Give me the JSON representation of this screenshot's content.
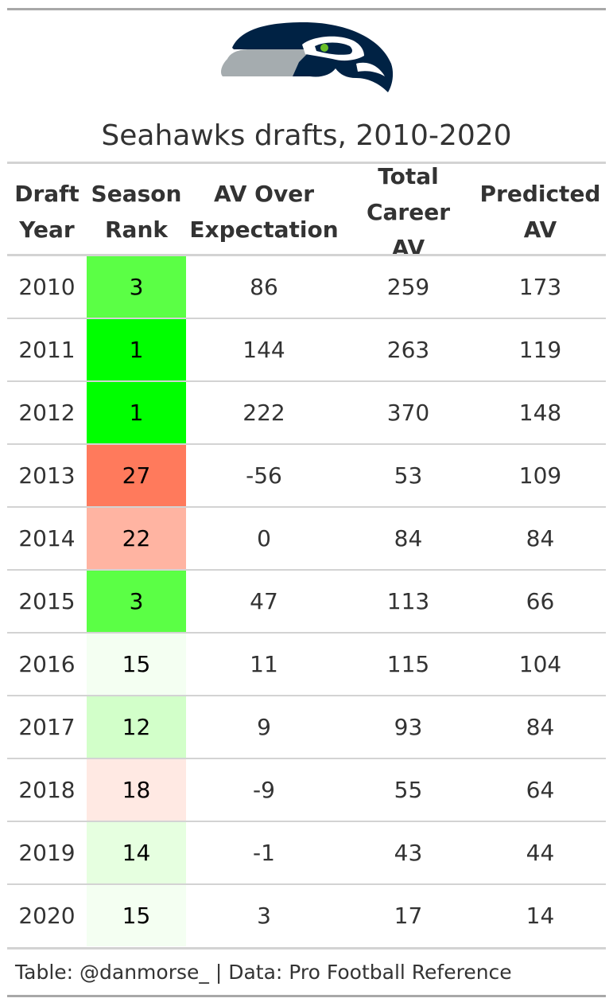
{
  "chart_data": {
    "type": "table",
    "title": "Seahawks drafts, 2010-2020",
    "columns": [
      {
        "key": "year",
        "label": "Draft Year"
      },
      {
        "key": "rank",
        "label": "Season Rank"
      },
      {
        "key": "avoe",
        "label": "AV Over Expectation"
      },
      {
        "key": "total",
        "label": "Total Career AV"
      },
      {
        "key": "pred",
        "label": "Predicted AV"
      }
    ],
    "rows": [
      {
        "year": 2010,
        "rank": 3,
        "avoe": 86,
        "total": 259,
        "pred": 173,
        "rank_color": "#5bff45"
      },
      {
        "year": 2011,
        "rank": 1,
        "avoe": 144,
        "total": 263,
        "pred": 119,
        "rank_color": "#00ff00"
      },
      {
        "year": 2012,
        "rank": 1,
        "avoe": 222,
        "total": 370,
        "pred": 148,
        "rank_color": "#00ff00"
      },
      {
        "year": 2013,
        "rank": 27,
        "avoe": -56,
        "total": 53,
        "pred": 109,
        "rank_color": "#ff7a5c"
      },
      {
        "year": 2014,
        "rank": 22,
        "avoe": 0,
        "total": 84,
        "pred": 84,
        "rank_color": "#ffb4a2"
      },
      {
        "year": 2015,
        "rank": 3,
        "avoe": 47,
        "total": 113,
        "pred": 66,
        "rank_color": "#5bff45"
      },
      {
        "year": 2016,
        "rank": 15,
        "avoe": 11,
        "total": 115,
        "pred": 104,
        "rank_color": "#f4fff2"
      },
      {
        "year": 2017,
        "rank": 12,
        "avoe": 9,
        "total": 93,
        "pred": 84,
        "rank_color": "#d2ffc9"
      },
      {
        "year": 2018,
        "rank": 18,
        "avoe": -9,
        "total": 55,
        "pred": 64,
        "rank_color": "#ffe9e3"
      },
      {
        "year": 2019,
        "rank": 14,
        "avoe": -1,
        "total": 43,
        "pred": 44,
        "rank_color": "#e6ffe0"
      },
      {
        "year": 2020,
        "rank": 15,
        "avoe": 3,
        "total": 17,
        "pred": 14,
        "rank_color": "#f4fff2"
      }
    ],
    "footer": "Table: @danmorse_ | Data: Pro Football Reference"
  },
  "logo": {
    "icon": "seahawks-logo-icon",
    "navy": "#002244",
    "grey": "#a5acaf",
    "green": "#69be28"
  }
}
